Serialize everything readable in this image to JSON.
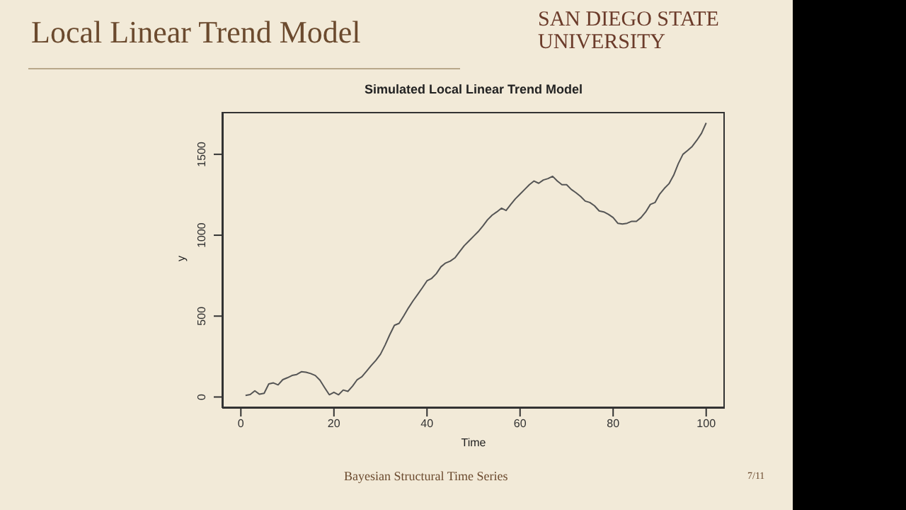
{
  "chart_data": {
    "type": "line",
    "title": "Simulated Local Linear Trend Model",
    "xlabel": "Time",
    "ylabel": "y",
    "x": [
      1,
      2,
      3,
      4,
      5,
      6,
      7,
      8,
      9,
      10,
      11,
      12,
      13,
      14,
      15,
      16,
      17,
      18,
      19,
      20,
      21,
      22,
      23,
      24,
      25,
      26,
      27,
      28,
      29,
      30,
      31,
      32,
      33,
      34,
      35,
      36,
      37,
      38,
      39,
      40,
      41,
      42,
      43,
      44,
      45,
      46,
      47,
      48,
      49,
      50,
      51,
      52,
      53,
      54,
      55,
      56,
      57,
      58,
      59,
      60,
      61,
      62,
      63,
      64,
      65,
      66,
      67,
      68,
      69,
      70,
      71,
      72,
      73,
      74,
      75,
      76,
      77,
      78,
      79,
      80,
      81,
      82,
      83,
      84,
      85,
      86,
      87,
      88,
      89,
      90,
      91,
      92,
      93,
      94,
      95,
      96,
      97,
      98,
      99,
      100
    ],
    "series": [
      {
        "color": "#555555",
        "values": [
          10,
          15,
          38,
          17,
          23,
          81,
          87,
          75,
          107,
          119,
          133,
          139,
          156,
          153,
          145,
          133,
          104,
          58,
          14,
          29,
          14,
          43,
          35,
          67,
          107,
          125,
          159,
          194,
          226,
          264,
          321,
          385,
          443,
          455,
          501,
          550,
          594,
          634,
          675,
          718,
          733,
          762,
          805,
          828,
          840,
          860,
          898,
          935,
          964,
          993,
          1022,
          1057,
          1095,
          1124,
          1144,
          1167,
          1153,
          1190,
          1225,
          1254,
          1283,
          1312,
          1335,
          1321,
          1341,
          1350,
          1364,
          1335,
          1312,
          1312,
          1283,
          1263,
          1240,
          1211,
          1202,
          1182,
          1150,
          1144,
          1129,
          1109,
          1074,
          1069,
          1074,
          1086,
          1086,
          1109,
          1144,
          1190,
          1202,
          1254,
          1289,
          1318,
          1370,
          1442,
          1500,
          1523,
          1549,
          1587,
          1630,
          1694
        ]
      }
    ],
    "xlim": [
      -4,
      104
    ],
    "xticks": [
      0,
      20,
      40,
      60,
      80,
      100
    ],
    "ylim": [
      -68,
      1762
    ],
    "yticks": [
      0,
      500,
      1000,
      1500
    ],
    "grid": false,
    "legend": false,
    "marker": "none",
    "line_style": "solid",
    "annotations": [
      "Local Linear Trend Model",
      "SAN DIEGO STATE UNIVERSITY",
      "Bayesian Structural Time Series",
      "7/11"
    ]
  }
}
